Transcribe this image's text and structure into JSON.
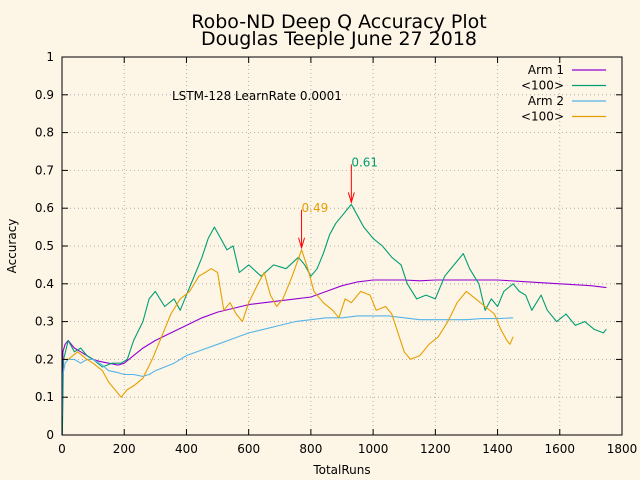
{
  "chart_data": {
    "type": "line",
    "title": "Robo-ND Deep Q Accuracy Plot",
    "subtitle": "Douglas Teeple June 27 2018",
    "xlabel": "TotalRuns",
    "ylabel": "Accuracy",
    "xlim": [
      0,
      1800
    ],
    "ylim": [
      0,
      1
    ],
    "xticks": [
      "0",
      "200",
      "400",
      "600",
      "800",
      "1000",
      "1200",
      "1400",
      "1600",
      "1800"
    ],
    "yticks": [
      "0",
      "0.1",
      "0.2",
      "0.3",
      "0.4",
      "0.5",
      "0.6",
      "0.7",
      "0.8",
      "0.9",
      "1"
    ],
    "grid": true,
    "legend_position": "top-right",
    "annotation_text": "LSTM-128 LearnRate 0.0001",
    "series": [
      {
        "name": "Arm 1",
        "color": "#9400d3",
        "points": [
          [
            1,
            0
          ],
          [
            3,
            0.22
          ],
          [
            10,
            0.24
          ],
          [
            20,
            0.25
          ],
          [
            30,
            0.24
          ],
          [
            40,
            0.23
          ],
          [
            60,
            0.22
          ],
          [
            80,
            0.21
          ],
          [
            100,
            0.2
          ],
          [
            120,
            0.195
          ],
          [
            150,
            0.19
          ],
          [
            180,
            0.185
          ],
          [
            200,
            0.19
          ],
          [
            230,
            0.21
          ],
          [
            260,
            0.23
          ],
          [
            300,
            0.25
          ],
          [
            350,
            0.27
          ],
          [
            400,
            0.29
          ],
          [
            450,
            0.31
          ],
          [
            500,
            0.325
          ],
          [
            550,
            0.335
          ],
          [
            600,
            0.345
          ],
          [
            650,
            0.35
          ],
          [
            700,
            0.355
          ],
          [
            750,
            0.36
          ],
          [
            800,
            0.365
          ],
          [
            850,
            0.38
          ],
          [
            900,
            0.395
          ],
          [
            950,
            0.405
          ],
          [
            1000,
            0.41
          ],
          [
            1050,
            0.41
          ],
          [
            1100,
            0.41
          ],
          [
            1150,
            0.408
          ],
          [
            1200,
            0.41
          ],
          [
            1300,
            0.41
          ],
          [
            1400,
            0.41
          ],
          [
            1500,
            0.405
          ],
          [
            1600,
            0.4
          ],
          [
            1700,
            0.395
          ],
          [
            1750,
            0.39
          ]
        ]
      },
      {
        "name": "<100>",
        "color": "#009e73",
        "points": [
          [
            1,
            0
          ],
          [
            5,
            0.2
          ],
          [
            20,
            0.25
          ],
          [
            40,
            0.22
          ],
          [
            60,
            0.23
          ],
          [
            80,
            0.21
          ],
          [
            100,
            0.2
          ],
          [
            130,
            0.18
          ],
          [
            160,
            0.19
          ],
          [
            190,
            0.19
          ],
          [
            210,
            0.2
          ],
          [
            230,
            0.25
          ],
          [
            260,
            0.3
          ],
          [
            280,
            0.36
          ],
          [
            300,
            0.38
          ],
          [
            330,
            0.34
          ],
          [
            360,
            0.36
          ],
          [
            380,
            0.33
          ],
          [
            400,
            0.37
          ],
          [
            420,
            0.41
          ],
          [
            450,
            0.47
          ],
          [
            470,
            0.52
          ],
          [
            490,
            0.55
          ],
          [
            510,
            0.52
          ],
          [
            530,
            0.49
          ],
          [
            550,
            0.5
          ],
          [
            570,
            0.43
          ],
          [
            600,
            0.45
          ],
          [
            640,
            0.42
          ],
          [
            680,
            0.45
          ],
          [
            720,
            0.44
          ],
          [
            760,
            0.47
          ],
          [
            780,
            0.45
          ],
          [
            800,
            0.42
          ],
          [
            820,
            0.44
          ],
          [
            840,
            0.48
          ],
          [
            860,
            0.53
          ],
          [
            880,
            0.56
          ],
          [
            900,
            0.58
          ],
          [
            930,
            0.61
          ],
          [
            950,
            0.58
          ],
          [
            970,
            0.55
          ],
          [
            1000,
            0.52
          ],
          [
            1030,
            0.5
          ],
          [
            1060,
            0.47
          ],
          [
            1090,
            0.45
          ],
          [
            1110,
            0.4
          ],
          [
            1140,
            0.36
          ],
          [
            1170,
            0.37
          ],
          [
            1200,
            0.36
          ],
          [
            1230,
            0.42
          ],
          [
            1260,
            0.45
          ],
          [
            1290,
            0.48
          ],
          [
            1310,
            0.44
          ],
          [
            1340,
            0.4
          ],
          [
            1360,
            0.33
          ],
          [
            1380,
            0.36
          ],
          [
            1400,
            0.34
          ],
          [
            1420,
            0.38
          ],
          [
            1450,
            0.4
          ],
          [
            1470,
            0.38
          ],
          [
            1490,
            0.37
          ],
          [
            1510,
            0.33
          ],
          [
            1540,
            0.37
          ],
          [
            1560,
            0.33
          ],
          [
            1590,
            0.3
          ],
          [
            1620,
            0.32
          ],
          [
            1650,
            0.29
          ],
          [
            1680,
            0.3
          ],
          [
            1710,
            0.28
          ],
          [
            1740,
            0.27
          ],
          [
            1750,
            0.28
          ]
        ]
      },
      {
        "name": "Arm 2",
        "color": "#56b4e9",
        "points": [
          [
            1,
            0.05
          ],
          [
            3,
            0.16
          ],
          [
            10,
            0.19
          ],
          [
            20,
            0.2
          ],
          [
            40,
            0.2
          ],
          [
            60,
            0.19
          ],
          [
            80,
            0.2
          ],
          [
            100,
            0.2
          ],
          [
            130,
            0.185
          ],
          [
            150,
            0.17
          ],
          [
            180,
            0.165
          ],
          [
            200,
            0.16
          ],
          [
            230,
            0.16
          ],
          [
            260,
            0.155
          ],
          [
            280,
            0.16
          ],
          [
            300,
            0.17
          ],
          [
            330,
            0.18
          ],
          [
            360,
            0.19
          ],
          [
            400,
            0.21
          ],
          [
            450,
            0.225
          ],
          [
            500,
            0.24
          ],
          [
            550,
            0.255
          ],
          [
            600,
            0.27
          ],
          [
            650,
            0.28
          ],
          [
            700,
            0.29
          ],
          [
            750,
            0.3
          ],
          [
            800,
            0.305
          ],
          [
            850,
            0.31
          ],
          [
            900,
            0.31
          ],
          [
            950,
            0.315
          ],
          [
            1000,
            0.315
          ],
          [
            1050,
            0.315
          ],
          [
            1100,
            0.31
          ],
          [
            1150,
            0.305
          ],
          [
            1200,
            0.305
          ],
          [
            1250,
            0.305
          ],
          [
            1300,
            0.305
          ],
          [
            1350,
            0.308
          ],
          [
            1400,
            0.308
          ],
          [
            1450,
            0.31
          ]
        ]
      },
      {
        "name": "<100>",
        "color": "#e69f00",
        "points": [
          [
            1,
            0.2
          ],
          [
            20,
            0.2
          ],
          [
            50,
            0.22
          ],
          [
            80,
            0.2
          ],
          [
            100,
            0.19
          ],
          [
            130,
            0.17
          ],
          [
            150,
            0.14
          ],
          [
            170,
            0.12
          ],
          [
            190,
            0.1
          ],
          [
            210,
            0.12
          ],
          [
            230,
            0.13
          ],
          [
            260,
            0.15
          ],
          [
            290,
            0.2
          ],
          [
            320,
            0.26
          ],
          [
            350,
            0.32
          ],
          [
            380,
            0.36
          ],
          [
            410,
            0.38
          ],
          [
            440,
            0.42
          ],
          [
            460,
            0.43
          ],
          [
            480,
            0.44
          ],
          [
            500,
            0.43
          ],
          [
            520,
            0.33
          ],
          [
            540,
            0.35
          ],
          [
            560,
            0.32
          ],
          [
            580,
            0.3
          ],
          [
            600,
            0.35
          ],
          [
            630,
            0.4
          ],
          [
            650,
            0.43
          ],
          [
            670,
            0.37
          ],
          [
            690,
            0.34
          ],
          [
            710,
            0.36
          ],
          [
            740,
            0.42
          ],
          [
            770,
            0.49
          ],
          [
            790,
            0.44
          ],
          [
            810,
            0.38
          ],
          [
            840,
            0.35
          ],
          [
            870,
            0.33
          ],
          [
            890,
            0.31
          ],
          [
            910,
            0.36
          ],
          [
            930,
            0.35
          ],
          [
            960,
            0.38
          ],
          [
            990,
            0.37
          ],
          [
            1010,
            0.33
          ],
          [
            1040,
            0.34
          ],
          [
            1060,
            0.32
          ],
          [
            1080,
            0.27
          ],
          [
            1100,
            0.22
          ],
          [
            1120,
            0.2
          ],
          [
            1150,
            0.21
          ],
          [
            1180,
            0.24
          ],
          [
            1210,
            0.26
          ],
          [
            1240,
            0.3
          ],
          [
            1270,
            0.35
          ],
          [
            1300,
            0.38
          ],
          [
            1330,
            0.36
          ],
          [
            1360,
            0.34
          ],
          [
            1390,
            0.32
          ],
          [
            1410,
            0.28
          ],
          [
            1430,
            0.25
          ],
          [
            1440,
            0.24
          ],
          [
            1450,
            0.26
          ]
        ]
      }
    ],
    "peak_labels": [
      {
        "text": "0.61",
        "x": 930,
        "y": 0.61,
        "color": "#009e73"
      },
      {
        "text": "0.49",
        "x": 770,
        "y": 0.49,
        "color": "#e69f00"
      }
    ],
    "arrow_color": "#ff0000"
  }
}
